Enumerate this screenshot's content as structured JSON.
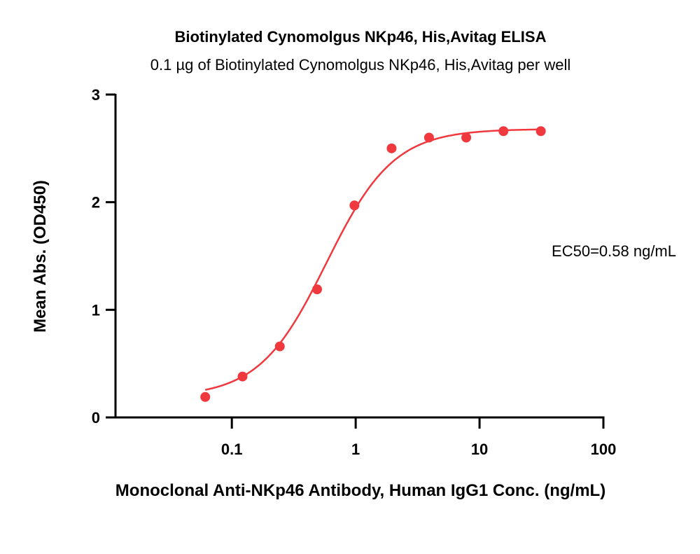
{
  "chart_data": {
    "type": "scatter",
    "title": "Biotinylated Cynomolgus NKp46, His,Avitag ELISA",
    "subtitle": "0.1 µg of Biotinylated Cynomolgus NKp46, His,Avitag per well",
    "xlabel": "Monoclonal Anti-NKp46 Antibody, Human IgG1 Conc. (ng/mL)",
    "ylabel": "Mean Abs. (OD450)",
    "x_scale": "log",
    "xlim": [
      0.0115,
      100
    ],
    "ylim": [
      0,
      3
    ],
    "x_ticks": [
      0.1,
      1,
      10,
      100
    ],
    "x_tick_labels": [
      "0.1",
      "1",
      "10",
      "100"
    ],
    "y_ticks": [
      0,
      1,
      2,
      3
    ],
    "y_tick_labels": [
      "0",
      "1",
      "2",
      "3"
    ],
    "grid": false,
    "legend": "none",
    "colors": {
      "series": "#f0393f",
      "axis": "#000000"
    },
    "series": [
      {
        "x": [
          0.061,
          0.122,
          0.244,
          0.488,
          0.977,
          1.95,
          3.91,
          7.81,
          15.6,
          31.25
        ],
        "y": [
          0.19,
          0.38,
          0.66,
          1.19,
          1.97,
          2.5,
          2.6,
          2.6,
          2.66,
          2.66
        ]
      }
    ],
    "fit": {
      "model": "4PL",
      "bottom": 0.19,
      "top": 2.68,
      "ec50": 0.58,
      "hill": 1.6,
      "x_range": [
        0.061,
        31.25
      ]
    },
    "annotations": [
      {
        "text": "EC50=0.58 ng/mL"
      }
    ]
  }
}
